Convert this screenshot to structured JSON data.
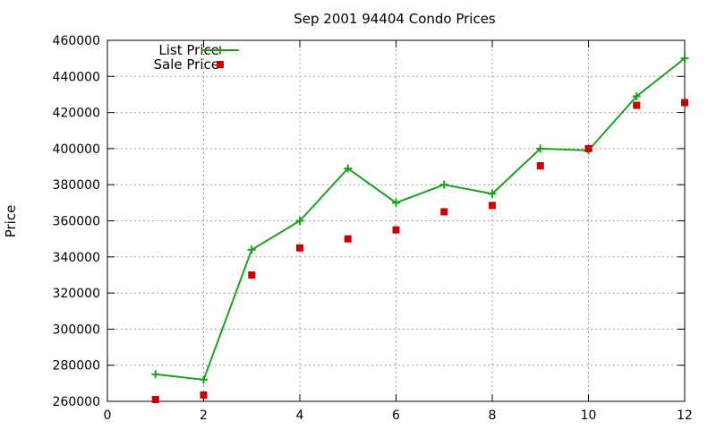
{
  "chart_data": {
    "type": "line",
    "title": "Sep 2001 94404 Condo Prices",
    "xlabel": "",
    "ylabel": "Price",
    "xlim": [
      0,
      12
    ],
    "ylim": [
      260000,
      460000
    ],
    "x_ticks": [
      0,
      2,
      4,
      6,
      8,
      10,
      12
    ],
    "y_ticks": [
      260000,
      280000,
      300000,
      320000,
      340000,
      360000,
      380000,
      400000,
      420000,
      440000,
      460000
    ],
    "grid": true,
    "legend_position": "top-left",
    "series": [
      {
        "name": "List Price",
        "style": "line-with-plus-markers",
        "color": "#1aa31a",
        "x": [
          1,
          2,
          3,
          4,
          5,
          6,
          7,
          8,
          9,
          10,
          11,
          12
        ],
        "values": [
          275000,
          272000,
          344000,
          360000,
          389000,
          370000,
          380000,
          375000,
          400000,
          399000,
          429000,
          450000
        ]
      },
      {
        "name": "Sale Price",
        "style": "square-markers",
        "color": "#cc0000",
        "x": [
          1,
          2,
          3,
          4,
          5,
          6,
          7,
          8,
          9,
          10,
          11,
          12
        ],
        "values": [
          261000,
          263500,
          330000,
          345000,
          350000,
          355000,
          365000,
          368500,
          390500,
          400000,
          424000,
          425500
        ]
      }
    ]
  }
}
